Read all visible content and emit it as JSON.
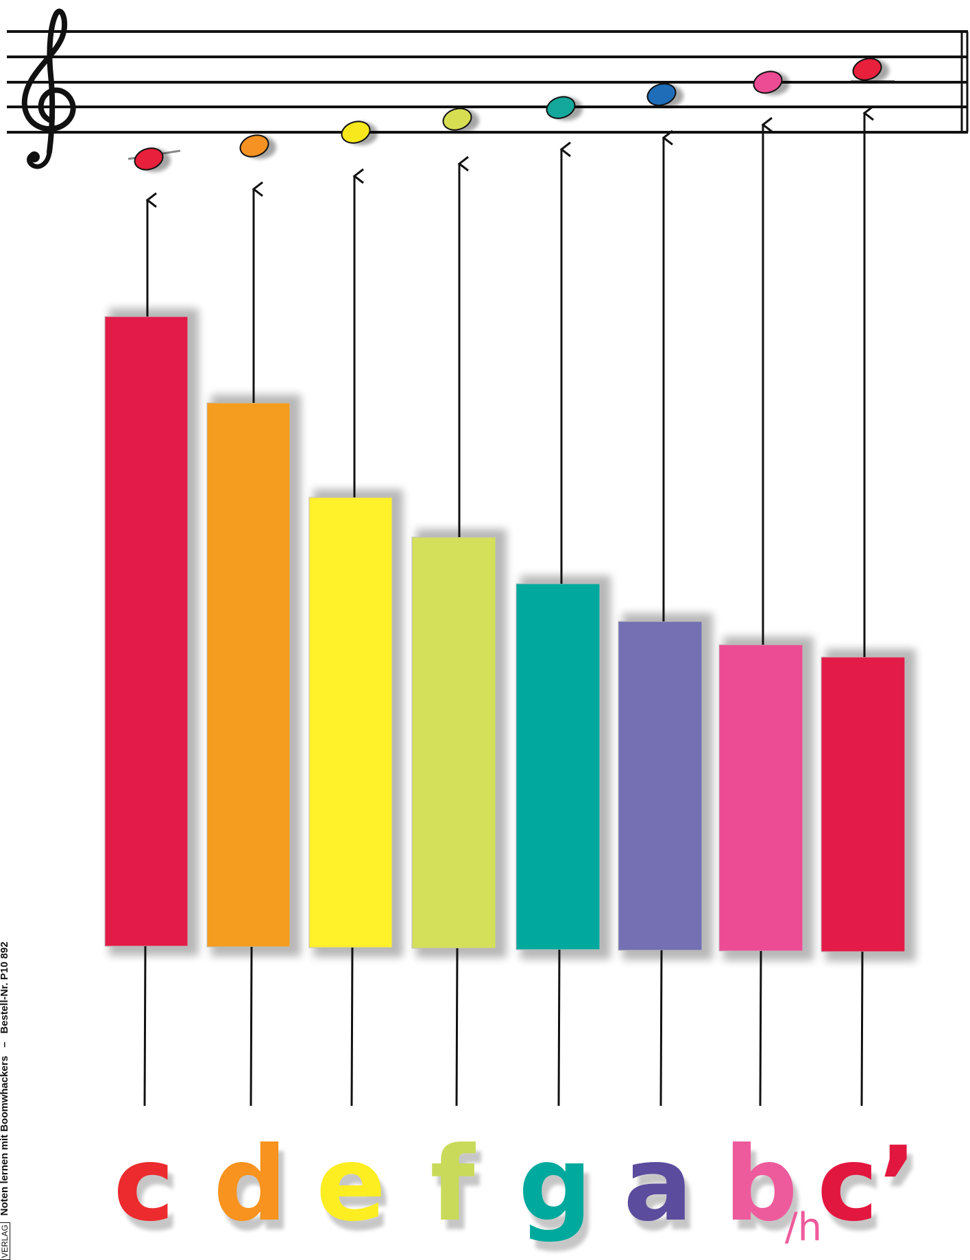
{
  "footer": {
    "publisher": "VERLAG",
    "title": "Noten lernen mit Boomwhackers",
    "separator": "–",
    "order_number": "Bestell-Nr. P10 892"
  },
  "staff": {
    "clef": "treble-clef-icon",
    "line_color": "#111111"
  },
  "tubes": [
    {
      "note": "c",
      "suffix": "",
      "color": "#E31B48"
    },
    {
      "note": "d",
      "suffix": "",
      "color": "#F59D1F"
    },
    {
      "note": "e",
      "suffix": "",
      "color": "#FFF12A"
    },
    {
      "note": "f",
      "suffix": "",
      "color": "#D4E05A"
    },
    {
      "note": "g",
      "suffix": "",
      "color": "#00A89E"
    },
    {
      "note": "a",
      "suffix": "",
      "color": "#7470B3"
    },
    {
      "note": "b",
      "suffix": "/h",
      "color": "#EC4C93"
    },
    {
      "note": "c’",
      "suffix": "",
      "color": "#E31B48"
    }
  ],
  "note_heads": [
    {
      "color": "#E8203C"
    },
    {
      "color": "#F59223"
    },
    {
      "color": "#F6E81C"
    },
    {
      "color": "#D7DE52"
    },
    {
      "color": "#13A89B"
    },
    {
      "color": "#1F6DB8"
    },
    {
      "color": "#EC4C93"
    },
    {
      "color": "#E8203C"
    }
  ],
  "letter_colors": [
    "#EC2B2E",
    "#F7931E",
    "#FCEE21",
    "#C9DA5A",
    "#00A99D",
    "#5B4C9E",
    "#EE5B9C",
    "#E2173F"
  ]
}
